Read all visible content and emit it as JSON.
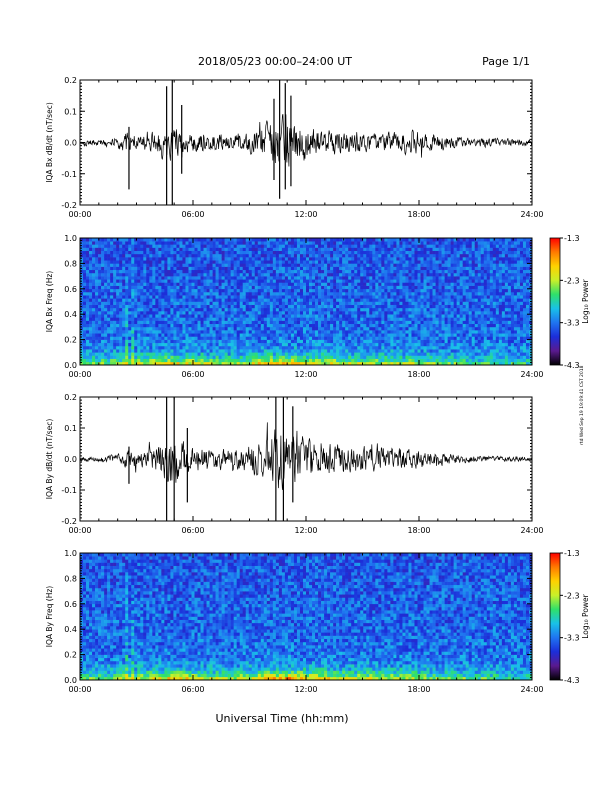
{
  "header": {
    "title": "2018/05/23  00:00–24:00 UT",
    "page": "Page 1/1"
  },
  "footer": {
    "xlabel": "Universal Time (hh:mm)",
    "stamp": "rtd Wed Sep 19 19:09:41 CST 2018"
  },
  "colors": {
    "trace": "#000000",
    "colormap": [
      "#000000",
      "#5a1a8f",
      "#1c2ed9",
      "#1f74f0",
      "#19c1e8",
      "#2fe06a",
      "#c8f02a",
      "#ffd200",
      "#ff7a00",
      "#ff0000"
    ]
  },
  "chart_data": [
    {
      "type": "line",
      "id": "bx_trace",
      "ylabel": "IQA Bx dB/dt (nT/sec)",
      "xlim": [
        0,
        24
      ],
      "ylim": [
        -0.2,
        0.2
      ],
      "xticks": [
        "00:00",
        "06:00",
        "12:00",
        "18:00",
        "24:00"
      ],
      "yticks": [
        "-0.2",
        "-0.1",
        "0.0",
        "0.1",
        "0.2"
      ],
      "envelope": {
        "hours": [
          0,
          1,
          2,
          2.5,
          3,
          4,
          4.5,
          5,
          5.5,
          6,
          7,
          8,
          9,
          10,
          10.5,
          11,
          11.5,
          12,
          13,
          14,
          15,
          16,
          17,
          18,
          19,
          20,
          21,
          22,
          23,
          24
        ],
        "amplitude": [
          0.012,
          0.015,
          0.025,
          0.05,
          0.035,
          0.045,
          0.075,
          0.07,
          0.045,
          0.04,
          0.035,
          0.035,
          0.05,
          0.08,
          0.12,
          0.12,
          0.09,
          0.065,
          0.05,
          0.045,
          0.045,
          0.04,
          0.045,
          0.05,
          0.035,
          0.025,
          0.02,
          0.018,
          0.016,
          0.014
        ]
      },
      "spikes": [
        {
          "hour": 2.6,
          "max": 0.05,
          "min": -0.15
        },
        {
          "hour": 4.6,
          "max": 0.18,
          "min": -0.2
        },
        {
          "hour": 4.9,
          "max": 0.2,
          "min": -0.2
        },
        {
          "hour": 5.4,
          "max": 0.12,
          "min": -0.1
        },
        {
          "hour": 10.3,
          "max": 0.14,
          "min": -0.12
        },
        {
          "hour": 10.6,
          "max": 0.2,
          "min": -0.18
        },
        {
          "hour": 10.9,
          "max": 0.19,
          "min": -0.15
        },
        {
          "hour": 11.2,
          "max": 0.15,
          "min": -0.14
        }
      ]
    },
    {
      "type": "heatmap",
      "id": "bx_spectrogram",
      "ylabel": "IQA Bx Freq (Hz)",
      "xlim": [
        0,
        24
      ],
      "ylim": [
        0,
        1.0
      ],
      "xticks": [
        "00:00",
        "06:00",
        "12:00",
        "18:00",
        "24:00"
      ],
      "yticks": [
        "0.0",
        "0.2",
        "0.4",
        "0.6",
        "0.8",
        "1.0"
      ],
      "colorbar": {
        "label": "Log₁₀ Power",
        "range": [
          -4.3,
          -1.3
        ],
        "ticks": [
          "-1.3",
          "-2.3",
          "-3.3",
          "-4.3"
        ]
      },
      "activity": {
        "hours": [
          0,
          1,
          2,
          3,
          4,
          5,
          6,
          7,
          8,
          9,
          10,
          11,
          12,
          13,
          14,
          15,
          16,
          17,
          18,
          19,
          20,
          21,
          22,
          23,
          24
        ],
        "low_freq_power_level": [
          0.45,
          0.5,
          0.55,
          0.65,
          0.7,
          0.75,
          0.7,
          0.65,
          0.6,
          0.7,
          0.85,
          0.95,
          0.8,
          0.7,
          0.65,
          0.65,
          0.6,
          0.6,
          0.6,
          0.5,
          0.45,
          0.4,
          0.4,
          0.35,
          0.35
        ]
      }
    },
    {
      "type": "line",
      "id": "by_trace",
      "ylabel": "IQA By dB/dt (nT/sec)",
      "xlim": [
        0,
        24
      ],
      "ylim": [
        -0.2,
        0.2
      ],
      "xticks": [
        "00:00",
        "06:00",
        "12:00",
        "18:00",
        "24:00"
      ],
      "yticks": [
        "-0.2",
        "-0.1",
        "0.0",
        "0.1",
        "0.2"
      ],
      "envelope": {
        "hours": [
          0,
          1,
          2,
          2.5,
          3,
          4,
          4.5,
          5,
          5.5,
          6,
          7,
          8,
          9,
          10,
          10.5,
          11,
          11.5,
          12,
          13,
          14,
          15,
          16,
          17,
          18,
          19,
          20,
          21,
          22,
          23,
          24
        ],
        "amplitude": [
          0.01,
          0.012,
          0.02,
          0.04,
          0.035,
          0.05,
          0.09,
          0.11,
          0.07,
          0.05,
          0.045,
          0.04,
          0.055,
          0.09,
          0.13,
          0.14,
          0.11,
          0.08,
          0.065,
          0.06,
          0.055,
          0.05,
          0.045,
          0.04,
          0.03,
          0.02,
          0.015,
          0.012,
          0.01,
          0.01
        ]
      },
      "spikes": [
        {
          "hour": 2.6,
          "max": 0.04,
          "min": -0.08
        },
        {
          "hour": 4.6,
          "max": 0.2,
          "min": -0.2
        },
        {
          "hour": 5.0,
          "max": 0.2,
          "min": -0.2
        },
        {
          "hour": 5.7,
          "max": 0.1,
          "min": -0.14
        },
        {
          "hour": 10.4,
          "max": 0.2,
          "min": -0.2
        },
        {
          "hour": 10.8,
          "max": 0.2,
          "min": -0.2
        },
        {
          "hour": 11.3,
          "max": 0.17,
          "min": -0.14
        }
      ]
    },
    {
      "type": "heatmap",
      "id": "by_spectrogram",
      "ylabel": "IQA By Freq (Hz)",
      "xlim": [
        0,
        24
      ],
      "ylim": [
        0,
        1.0
      ],
      "xticks": [
        "00:00",
        "06:00",
        "12:00",
        "18:00",
        "24:00"
      ],
      "yticks": [
        "0.0",
        "0.2",
        "0.4",
        "0.6",
        "0.8",
        "1.0"
      ],
      "colorbar": {
        "label": "Log₁₀ Power",
        "range": [
          -4.3,
          -1.3
        ],
        "ticks": [
          "-1.3",
          "-2.3",
          "-3.3",
          "-4.3"
        ]
      },
      "activity": {
        "hours": [
          0,
          1,
          2,
          3,
          4,
          5,
          6,
          7,
          8,
          9,
          10,
          11,
          12,
          13,
          14,
          15,
          16,
          17,
          18,
          19,
          20,
          21,
          22,
          23,
          24
        ],
        "low_freq_power_level": [
          0.45,
          0.5,
          0.55,
          0.65,
          0.7,
          0.8,
          0.75,
          0.65,
          0.6,
          0.7,
          0.85,
          0.95,
          0.85,
          0.75,
          0.7,
          0.7,
          0.65,
          0.65,
          0.6,
          0.55,
          0.5,
          0.45,
          0.4,
          0.4,
          0.35
        ]
      }
    }
  ]
}
